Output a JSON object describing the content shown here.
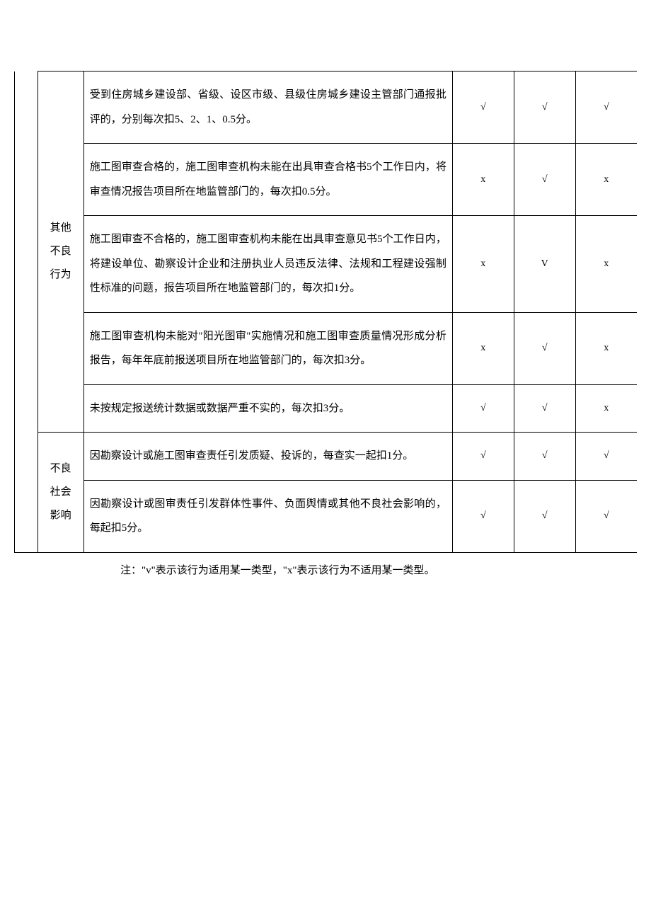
{
  "table": {
    "categories": [
      {
        "label_lines": [
          "其他",
          "不良",
          "行为"
        ],
        "rows": [
          {
            "desc": "受到住房城乡建设部、省级、设区市级、县级住房城乡建设主管部门通报批评的，分别每次扣5、2、1、0.5分。",
            "marks": [
              "√",
              "√",
              "√"
            ]
          },
          {
            "desc": "施工图审查合格的，施工图审查机构未能在出具审查合格书5个工作日内，将审查情况报告项目所在地监管部门的，每次扣0.5分。",
            "marks": [
              "x",
              "√",
              "x"
            ]
          },
          {
            "desc": "施工图审查不合格的，施工图审查机构未能在出具审查意见书5个工作日内，将建设单位、勘察设计企业和注册执业人员违反法律、法规和工程建设强制性标准的问题，报告项目所在地监管部门的，每次扣1分。",
            "marks": [
              "x",
              "V",
              "x"
            ]
          },
          {
            "desc": "施工图审查机构未能对\"阳光图审\"实施情况和施工图审查质量情况形成分析报告，每年年底前报送项目所在地监管部门的，每次扣3分。",
            "marks": [
              "x",
              "√",
              "x"
            ]
          },
          {
            "desc": "未按规定报送统计数据或数据严重不实的，每次扣3分。",
            "marks": [
              "√",
              "√",
              "x"
            ]
          }
        ]
      },
      {
        "label_lines": [
          "不良",
          "社会",
          "影响"
        ],
        "rows": [
          {
            "desc": "因勘察设计或施工图审查责任引发质疑、投诉的，每查实一起扣1分。",
            "marks": [
              "√",
              "√",
              "√"
            ]
          },
          {
            "desc": "因勘察设计或图审责任引发群体性事件、负面舆情或其他不良社会影响的，每起扣5分。",
            "marks": [
              "√",
              "√",
              "√"
            ]
          }
        ]
      }
    ]
  },
  "note": "注：\"v\"表示该行为适用某一类型，\"x\"表示该行为不适用某一类型。"
}
